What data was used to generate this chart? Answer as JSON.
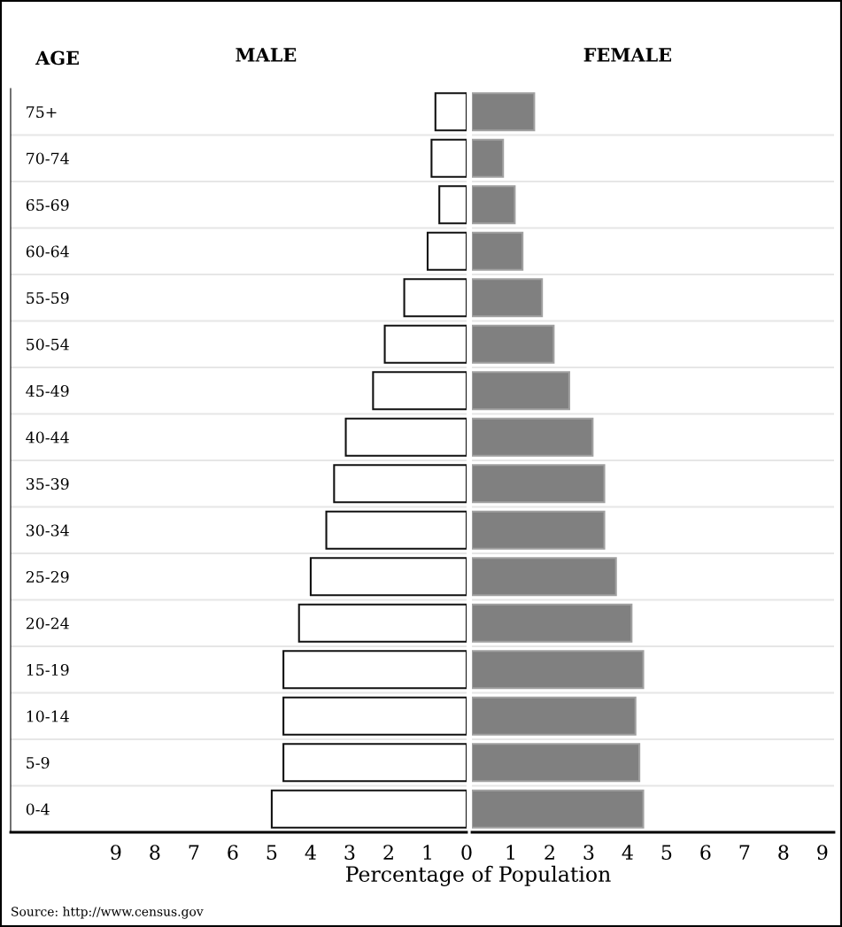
{
  "chart_data": [
    {
      "type": "bar",
      "orientation": "horizontal",
      "title": "MALE",
      "ylabel": "AGE",
      "xlabel": "Percentage of Population",
      "categories": [
        "75+",
        "70-74",
        "65-69",
        "60-64",
        "55-59",
        "50-54",
        "45-49",
        "40-44",
        "35-39",
        "30-34",
        "25-29",
        "20-24",
        "15-19",
        "10-14",
        "5-9",
        "0-4"
      ],
      "values": [
        0.8,
        0.9,
        0.7,
        1.0,
        1.6,
        2.1,
        2.4,
        3.1,
        3.4,
        3.6,
        4.0,
        4.3,
        4.7,
        4.7,
        4.7,
        5.0
      ],
      "color": "#ffffff",
      "xlim": [
        11.7,
        0
      ],
      "xticks": [
        0,
        1,
        2,
        3,
        4,
        5,
        6,
        7,
        8,
        9
      ],
      "grid": "y",
      "annotations": [
        "Source: http://www.census.gov"
      ]
    },
    {
      "type": "bar",
      "orientation": "horizontal",
      "title": "FEMALE",
      "values": [
        1.6,
        0.8,
        1.1,
        1.3,
        1.8,
        2.1,
        2.5,
        3.1,
        3.4,
        3.4,
        3.7,
        4.1,
        4.4,
        4.2,
        4.3,
        4.4
      ],
      "color": "#808080",
      "xlim": [
        0,
        9.3
      ],
      "xticks": [
        1,
        2,
        3,
        4,
        5,
        6,
        7,
        8,
        9
      ],
      "tick_labels": "x",
      "grid": "y"
    }
  ]
}
